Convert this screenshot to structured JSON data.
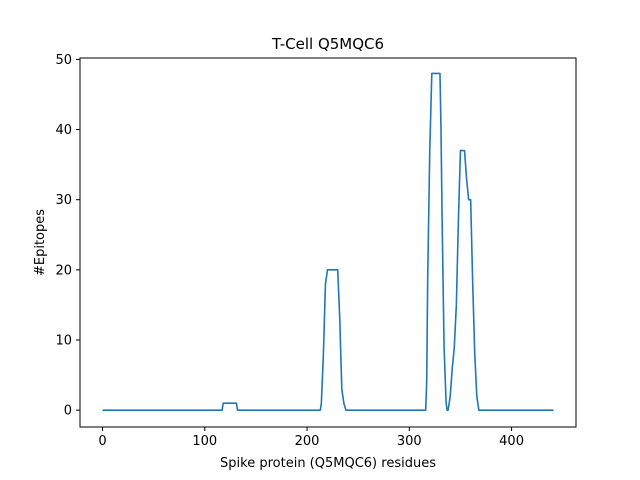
{
  "chart_data": {
    "type": "line",
    "title": "T-Cell Q5MQC6",
    "xlabel": "Spike protein (Q5MQC6) residues",
    "ylabel": "#Epitopes",
    "xlim": [
      -22,
      463
    ],
    "ylim": [
      -2.4,
      50.2
    ],
    "xticks": [
      0,
      100,
      200,
      300,
      400
    ],
    "yticks": [
      0,
      10,
      20,
      30,
      40,
      50
    ],
    "grid": false,
    "legend": "none",
    "series": [
      {
        "color": "#1f77b4",
        "x": [
          0,
          117,
          118,
          131,
          132,
          213,
          214,
          216,
          218,
          220,
          222,
          224,
          226,
          230,
          232,
          234,
          236,
          238,
          239,
          316,
          317,
          318,
          320,
          322,
          324,
          326,
          330,
          331,
          332,
          334,
          336,
          337,
          338,
          340,
          342,
          344,
          346,
          348,
          350,
          352,
          354,
          356,
          358,
          360,
          362,
          364,
          366,
          368,
          370,
          372,
          376,
          441
        ],
        "y": [
          0,
          0,
          1,
          1,
          0,
          0,
          1,
          8,
          18,
          20,
          20,
          20,
          20,
          20,
          13,
          3,
          1,
          0,
          0,
          0,
          4,
          19,
          37,
          48,
          48,
          48,
          48,
          40,
          28,
          9,
          1,
          0,
          0,
          2,
          6,
          9,
          15,
          27,
          37,
          37,
          37,
          33,
          30,
          30,
          18,
          8,
          2,
          0,
          0,
          0,
          0,
          0
        ]
      }
    ]
  }
}
